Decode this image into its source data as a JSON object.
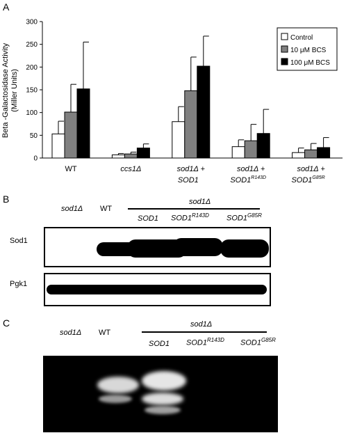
{
  "panelA": {
    "letter": "A",
    "chart_data": {
      "type": "bar",
      "ylabel": "Beta -Galactosidase Activity",
      "ylabel2": "(Miller Units)",
      "ylim": [
        0,
        300
      ],
      "yticks": [
        0,
        50,
        100,
        150,
        200,
        250,
        300
      ],
      "grid": false,
      "legend_position": "top-right",
      "categories": [
        {
          "line1": "WT",
          "line1_italic": false,
          "line2": "",
          "sup": ""
        },
        {
          "line1": "ccs1Δ",
          "line1_italic": true,
          "line2": "",
          "sup": ""
        },
        {
          "line1": "sod1Δ +",
          "line1_italic": true,
          "line2": "SOD1",
          "sup": ""
        },
        {
          "line1": "sod1Δ +",
          "line1_italic": true,
          "line2": "SOD1",
          "sup": "R143D"
        },
        {
          "line1": "sod1Δ +",
          "line1_italic": true,
          "line2": "SOD1",
          "sup": "G85R"
        }
      ],
      "series": [
        {
          "name": "Control",
          "color": "#ffffff",
          "values": [
            53,
            7,
            80,
            25,
            12
          ],
          "errors": [
            28,
            3,
            33,
            15,
            10
          ]
        },
        {
          "name": "10 μM BCS",
          "color": "#808080",
          "values": [
            101,
            9,
            148,
            38,
            18
          ],
          "errors": [
            61,
            4,
            74,
            36,
            14
          ]
        },
        {
          "name": "100 μM BCS",
          "color": "#000000",
          "values": [
            152,
            22,
            202,
            54,
            23
          ],
          "errors": [
            103,
            9,
            66,
            53,
            22
          ]
        }
      ]
    }
  },
  "panelB": {
    "letter": "B",
    "col_sod1d": "sod1Δ",
    "col_wt": "WT",
    "group_label": "sod1Δ",
    "sub_sod1": "SOD1",
    "sub_r143d_base": "SOD1",
    "sub_r143d_sup": "R143D",
    "sub_g85r_base": "SOD1",
    "sub_g85r_sup": "G85R",
    "row1": "Sod1",
    "row2": "Pgk1"
  },
  "panelC": {
    "letter": "C",
    "col_sod1d": "sod1Δ",
    "col_wt": "WT",
    "group_label": "sod1Δ",
    "sub_sod1": "SOD1",
    "sub_r143d_base": "SOD1",
    "sub_r143d_sup": "R143D",
    "sub_g85r_base": "SOD1",
    "sub_g85r_sup": "G85R"
  }
}
